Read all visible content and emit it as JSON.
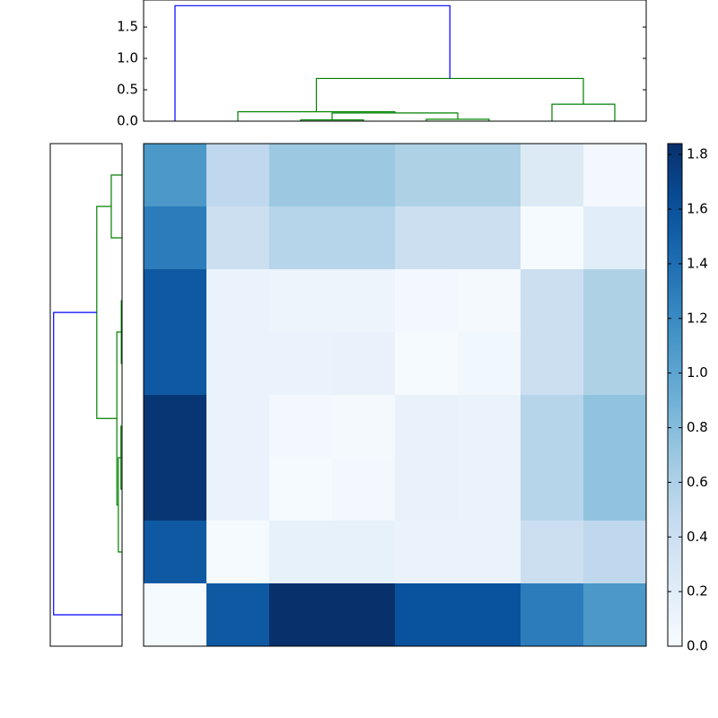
{
  "chart_data": [
    {
      "type": "dendrogram",
      "orientation": "top",
      "xlim": [
        0,
        80
      ],
      "ylim": [
        0,
        1.93
      ],
      "yticks": [
        {
          "value": 0,
          "label": "0.0"
        },
        {
          "value": 0.5,
          "label": "0.5"
        },
        {
          "value": 1,
          "label": "1.0"
        },
        {
          "value": 1.5,
          "label": "1.5"
        }
      ],
      "links": [
        {
          "color": "#008000",
          "pos": [
            25,
            25,
            35,
            35
          ],
          "height": [
            0,
            0.02,
            0.02,
            0
          ]
        },
        {
          "color": "#008000",
          "pos": [
            45,
            45,
            55,
            55
          ],
          "height": [
            0,
            0.03,
            0.03,
            0
          ]
        },
        {
          "color": "#008000",
          "pos": [
            30,
            30,
            50,
            50
          ],
          "height": [
            0.02,
            0.13,
            0.13,
            0.03
          ]
        },
        {
          "color": "#008000",
          "pos": [
            15,
            15,
            40,
            40
          ],
          "height": [
            0,
            0.15,
            0.15,
            0.13
          ]
        },
        {
          "color": "#008000",
          "pos": [
            65,
            65,
            75,
            75
          ],
          "height": [
            0,
            0.27,
            0.27,
            0
          ]
        },
        {
          "color": "#008000",
          "pos": [
            27.5,
            27.5,
            70,
            70
          ],
          "height": [
            0.15,
            0.68,
            0.68,
            0.27
          ]
        },
        {
          "color": "#0000ff",
          "pos": [
            5,
            5,
            48.75,
            48.75
          ],
          "height": [
            0,
            1.84,
            1.84,
            0.68
          ]
        }
      ]
    },
    {
      "type": "dendrogram",
      "orientation": "left",
      "xlim": [
        1.93,
        0
      ],
      "ylim": [
        80,
        0
      ],
      "links": [
        {
          "color": "#008000",
          "pos": [
            25,
            25,
            35,
            35
          ],
          "height": [
            0,
            0.02,
            0.02,
            0
          ]
        },
        {
          "color": "#008000",
          "pos": [
            45,
            45,
            55,
            55
          ],
          "height": [
            0,
            0.03,
            0.03,
            0
          ]
        },
        {
          "color": "#008000",
          "pos": [
            50,
            50,
            65,
            65
          ],
          "height": [
            0.03,
            0.1,
            0.1,
            0
          ]
        },
        {
          "color": "#008000",
          "pos": [
            30,
            30,
            57.5,
            57.5
          ],
          "height": [
            0.02,
            0.14,
            0.14,
            0.1
          ]
        },
        {
          "color": "#008000",
          "pos": [
            5,
            5,
            15,
            15
          ],
          "height": [
            0,
            0.29,
            0.29,
            0
          ]
        },
        {
          "color": "#008000",
          "pos": [
            10,
            10,
            43.75,
            43.75
          ],
          "height": [
            0.29,
            0.68,
            0.68,
            0.14
          ]
        },
        {
          "color": "#0000ff",
          "pos": [
            26.875,
            26.875,
            75,
            75
          ],
          "height": [
            0.68,
            1.84,
            1.84,
            0
          ]
        }
      ]
    },
    {
      "type": "heatmap",
      "colormap": "Blues",
      "clim": [
        0,
        1.84
      ],
      "colorbar_ticks": [
        {
          "value": 0,
          "label": "0.0"
        },
        {
          "value": 0.2,
          "label": "0.2"
        },
        {
          "value": 0.4,
          "label": "0.4"
        },
        {
          "value": 0.6,
          "label": "0.6"
        },
        {
          "value": 0.8,
          "label": "0.8"
        },
        {
          "value": 1,
          "label": "1.0"
        },
        {
          "value": 1.2,
          "label": "1.2"
        },
        {
          "value": 1.4,
          "label": "1.4"
        },
        {
          "value": 1.6,
          "label": "1.6"
        },
        {
          "value": 1.8,
          "label": "1.8"
        }
      ],
      "values": [
        [
          1.1,
          0.5,
          0.7,
          0.7,
          0.6,
          0.6,
          0.25,
          0.05
        ],
        [
          1.3,
          0.4,
          0.55,
          0.55,
          0.4,
          0.4,
          0.02,
          0.2
        ],
        [
          1.55,
          0.12,
          0.1,
          0.1,
          0.05,
          0.03,
          0.4,
          0.6
        ],
        [
          1.55,
          0.12,
          0.12,
          0.13,
          0.02,
          0.06,
          0.4,
          0.6
        ],
        [
          1.8,
          0.12,
          0.05,
          0.03,
          0.13,
          0.12,
          0.55,
          0.75
        ],
        [
          1.8,
          0.12,
          0.02,
          0.05,
          0.13,
          0.12,
          0.55,
          0.75
        ],
        [
          1.55,
          0.02,
          0.15,
          0.15,
          0.12,
          0.12,
          0.4,
          0.5
        ],
        [
          0.02,
          1.55,
          1.84,
          1.84,
          1.6,
          1.6,
          1.3,
          1.1
        ]
      ]
    }
  ]
}
